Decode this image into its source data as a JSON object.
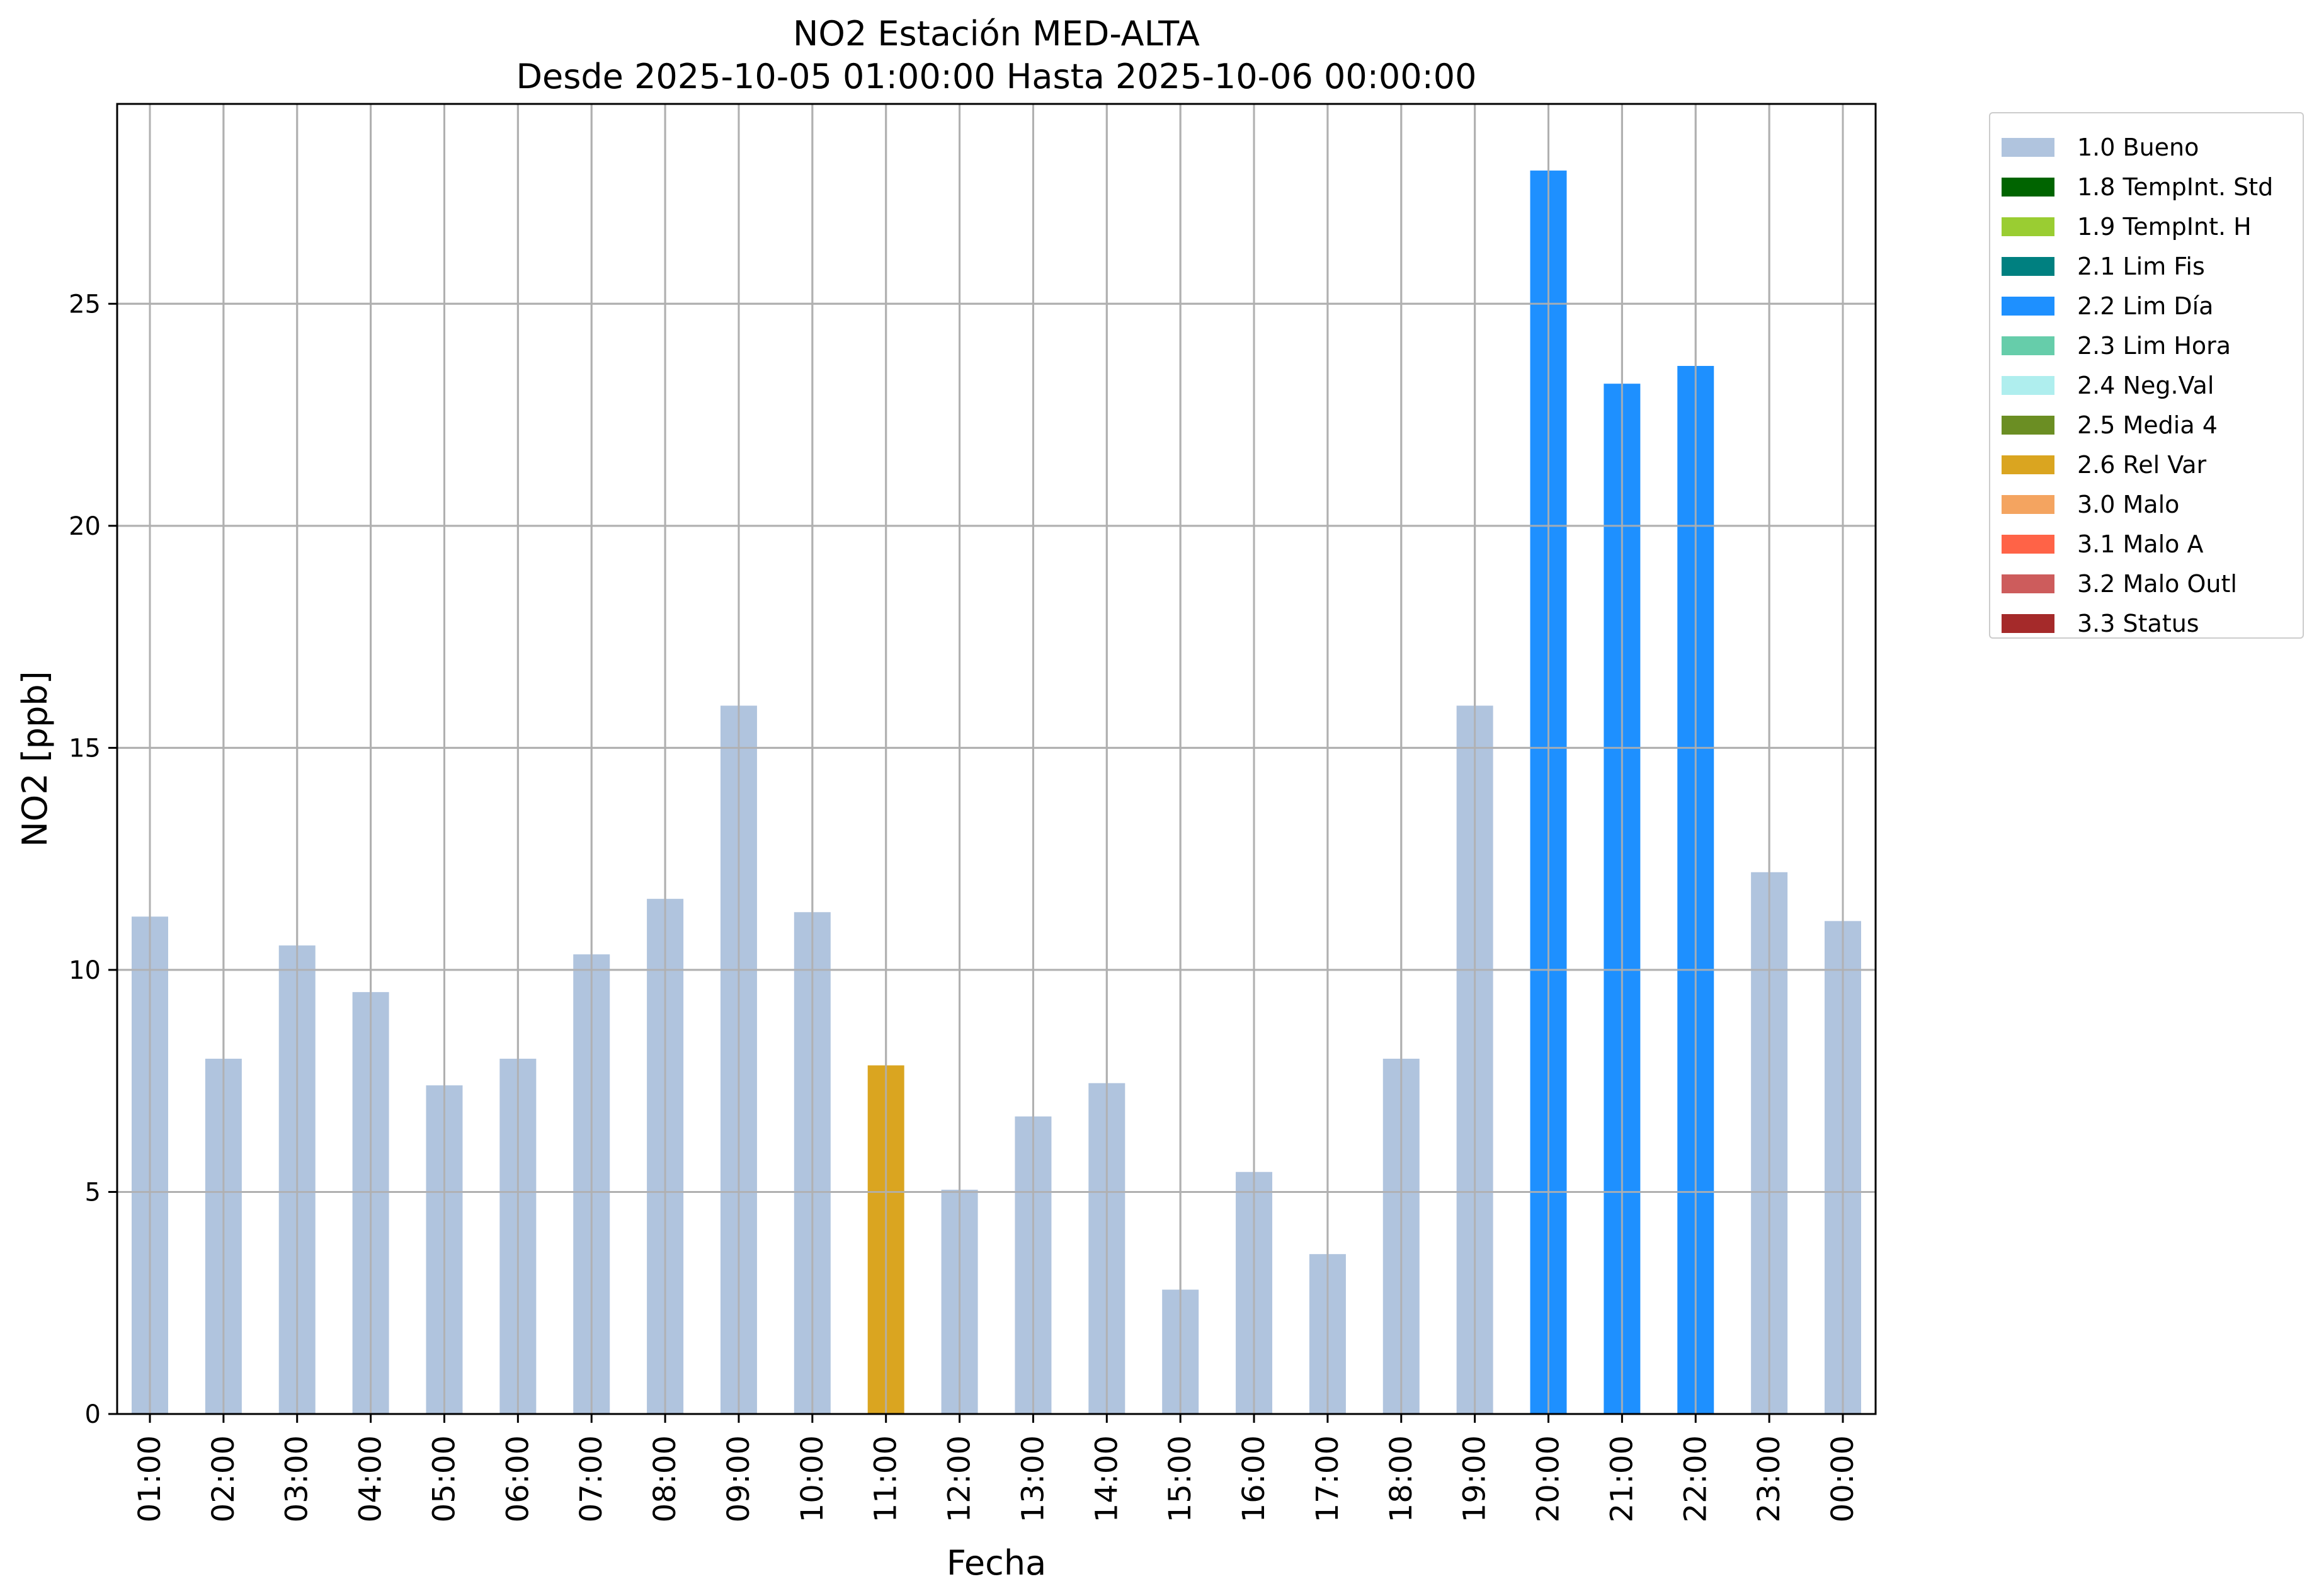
{
  "chart_data": {
    "type": "bar",
    "title": "NO2 Estación MED-ALTA",
    "subtitle": "Desde 2025-10-05 01:00:00 Hasta 2025-10-06 00:00:00",
    "xlabel": "Fecha",
    "ylabel": "NO2 [ppb]",
    "ylim": [
      0,
      29.5
    ],
    "yticks": [
      0,
      5,
      10,
      15,
      20,
      25
    ],
    "grid": true,
    "legend_position": "outside-right",
    "categories": [
      "01:00",
      "02:00",
      "03:00",
      "04:00",
      "05:00",
      "06:00",
      "07:00",
      "08:00",
      "09:00",
      "10:00",
      "11:00",
      "12:00",
      "13:00",
      "14:00",
      "15:00",
      "16:00",
      "17:00",
      "18:00",
      "19:00",
      "20:00",
      "21:00",
      "22:00",
      "23:00",
      "00:00"
    ],
    "values": [
      11.2,
      8.0,
      10.55,
      9.5,
      7.4,
      8.0,
      10.35,
      11.6,
      15.95,
      11.3,
      7.85,
      5.05,
      6.7,
      7.45,
      2.8,
      5.45,
      3.6,
      8.0,
      15.95,
      28.0,
      23.2,
      23.6,
      12.2,
      11.1
    ],
    "flags": [
      "1.0 Bueno",
      "1.0 Bueno",
      "1.0 Bueno",
      "1.0 Bueno",
      "1.0 Bueno",
      "1.0 Bueno",
      "1.0 Bueno",
      "1.0 Bueno",
      "1.0 Bueno",
      "1.0 Bueno",
      "2.6 Rel Var",
      "1.0 Bueno",
      "1.0 Bueno",
      "1.0 Bueno",
      "1.0 Bueno",
      "1.0 Bueno",
      "1.0 Bueno",
      "1.0 Bueno",
      "1.0 Bueno",
      "2.2 Lim Día",
      "2.2 Lim Día",
      "2.2 Lim Día",
      "1.0 Bueno",
      "1.0 Bueno"
    ],
    "legend": [
      {
        "label": "1.0 Bueno",
        "color": "#b0c4de"
      },
      {
        "label": "1.8 TempInt. Std",
        "color": "#006400"
      },
      {
        "label": "1.9 TempInt. H",
        "color": "#9acd32"
      },
      {
        "label": "2.1 Lim Fis",
        "color": "#008080"
      },
      {
        "label": "2.2 Lim Día",
        "color": "#1e90ff"
      },
      {
        "label": "2.3 Lim Hora",
        "color": "#66cdaa"
      },
      {
        "label": "2.4 Neg.Val",
        "color": "#afeeee"
      },
      {
        "label": "2.5 Media 4",
        "color": "#6b8e23"
      },
      {
        "label": "2.6 Rel Var",
        "color": "#daa520"
      },
      {
        "label": "3.0 Malo",
        "color": "#f4a460"
      },
      {
        "label": "3.1 Malo A",
        "color": "#ff6347"
      },
      {
        "label": "3.2 Malo Outl",
        "color": "#cd5c5c"
      },
      {
        "label": "3.3 Status",
        "color": "#a52a2a"
      }
    ]
  }
}
